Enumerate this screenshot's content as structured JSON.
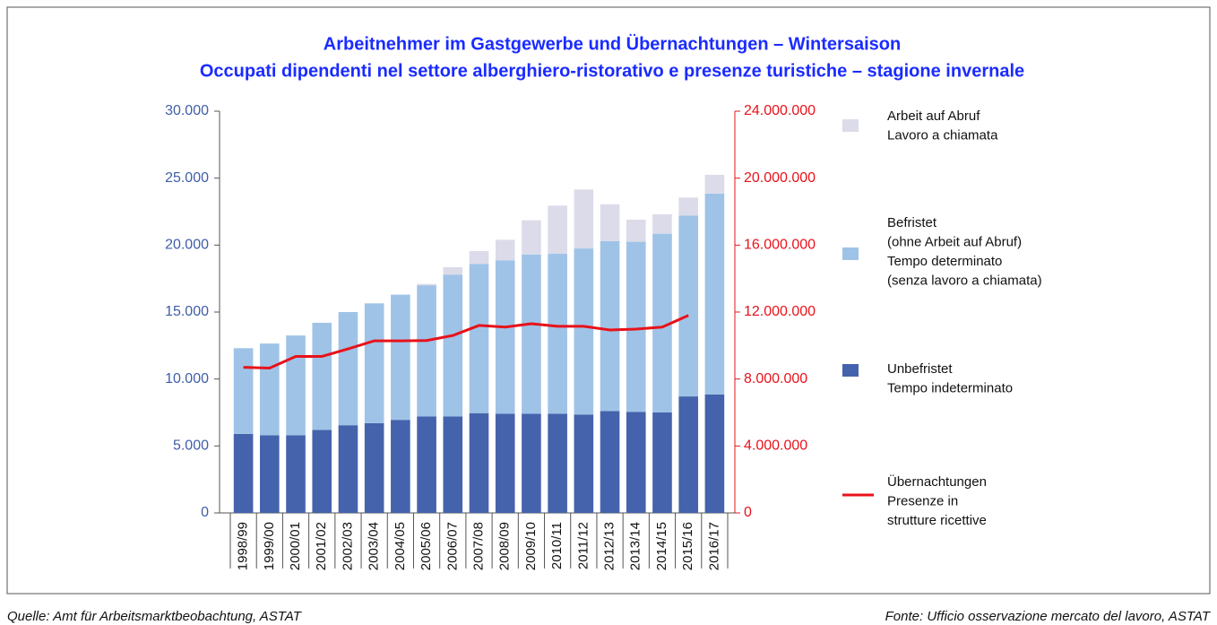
{
  "chart_data": {
    "type": "bar",
    "title": [
      "Arbeitnehmer im Gastgewerbe und Übernachtungen – Wintersaison",
      "Occupati dipendenti nel settore alberghiero-ristorativo e presenze turistiche – stagione invernale"
    ],
    "categories": [
      "1998/99",
      "1999/00",
      "2000/01",
      "2001/02",
      "2002/03",
      "2003/04",
      "2004/05",
      "2005/06",
      "2006/07",
      "2007/08",
      "2008/09",
      "2009/10",
      "2010/11",
      "2011/12",
      "2012/13",
      "2013/14",
      "2014/15",
      "2015/16",
      "2016/17"
    ],
    "series": [
      {
        "name": [
          "Arbeit auf Abruf",
          "Lavoro a chiamata"
        ],
        "color": "#dcdbea",
        "type": "bar",
        "values": [
          0,
          0,
          0,
          0,
          0,
          0,
          0,
          100,
          550,
          950,
          1550,
          2550,
          3600,
          4400,
          2750,
          1650,
          1450,
          1350,
          1400
        ]
      },
      {
        "name": [
          "Befristet",
          "(ohne Arbeit auf Abruf)",
          "Tempo determinato",
          "(senza lavoro a chiamata)"
        ],
        "color": "#9fc3e7",
        "type": "bar",
        "values": [
          6400,
          6850,
          7450,
          8000,
          8450,
          8950,
          9350,
          9800,
          10600,
          11150,
          11450,
          11900,
          11950,
          12400,
          12700,
          12700,
          13350,
          13500,
          15000
        ]
      },
      {
        "name": [
          "Unbefristet",
          "Tempo indeterminato"
        ],
        "color": "#4563ac",
        "type": "bar",
        "values": [
          5900,
          5800,
          5800,
          6200,
          6550,
          6700,
          6950,
          7200,
          7200,
          7450,
          7400,
          7400,
          7400,
          7350,
          7600,
          7550,
          7500,
          8700,
          8850
        ]
      },
      {
        "name": [
          "Übernachtungen",
          "Presenze in",
          "strutture ricettive"
        ],
        "color": "#e8121a",
        "type": "line",
        "axis": "y2",
        "values": [
          8700000,
          8650000,
          9350000,
          9350000,
          9800000,
          10280000,
          10280000,
          10300000,
          10600000,
          11200000,
          11100000,
          11300000,
          11150000,
          11150000,
          10930000,
          10980000,
          11100000,
          11800000,
          null
        ]
      }
    ],
    "ylim": [
      0,
      30000
    ],
    "yticks": [
      {
        "value": 0,
        "label": "0"
      },
      {
        "value": 5000,
        "label": "5.000"
      },
      {
        "value": 10000,
        "label": "10.000"
      },
      {
        "value": 15000,
        "label": "15.000"
      },
      {
        "value": 20000,
        "label": "20.000"
      },
      {
        "value": 25000,
        "label": "25.000"
      },
      {
        "value": 30000,
        "label": "30.000"
      }
    ],
    "y2lim": [
      0,
      24000000
    ],
    "y2ticks": [
      {
        "value": 0,
        "label": "0"
      },
      {
        "value": 4000000,
        "label": "4.000.000"
      },
      {
        "value": 8000000,
        "label": "8.000.000"
      },
      {
        "value": 12000000,
        "label": "12.000.000"
      },
      {
        "value": 16000000,
        "label": "16.000.000"
      },
      {
        "value": 20000000,
        "label": "20.000.000"
      },
      {
        "value": 24000000,
        "label": "24.000.000"
      }
    ],
    "legend": "right",
    "sources": [
      "Quelle: Amt für Arbeitsmarktbeobachtung, ASTAT",
      "Fonte: Ufficio osservazione mercato del lavoro, ASTAT"
    ]
  }
}
